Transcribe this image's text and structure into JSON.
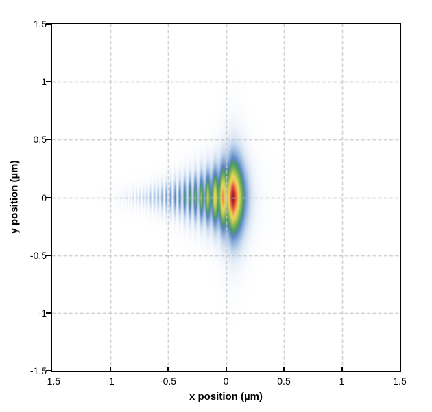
{
  "figure": {
    "background": "#ffffff",
    "frame_color": "#000000",
    "grid_color": "#c6c6c6",
    "grid_dash": [
      5,
      3.2
    ],
    "tick_color": "#000000",
    "text_color": "#000000"
  },
  "chart_data": {
    "type": "heatmap",
    "title": "",
    "xlabel": "x position (µm)",
    "ylabel": "y position (µm)",
    "xlim": [
      -1.5,
      1.5
    ],
    "ylim": [
      -1.5,
      1.5
    ],
    "x_tick_values": [
      -1.5,
      -1,
      -0.5,
      0,
      0.5,
      1,
      1.5
    ],
    "x_tick_labels": [
      "-1.5",
      "-1",
      "-0.5",
      "0",
      "0.5",
      "1",
      "1.5"
    ],
    "y_tick_values": [
      1.5,
      1,
      0.5,
      0,
      -0.5,
      -1,
      -1.5
    ],
    "y_tick_labels": [
      "1.5",
      "1",
      "0.5",
      "0",
      "-0.5",
      "-1",
      "-1.5"
    ],
    "grid_values": [
      -1,
      -0.5,
      0,
      0.5,
      1
    ],
    "grid_style": "dashed",
    "legend": "none",
    "description": "Optical focal intensity distribution: bright peak at (0.055, 0) um with a fan of chirped interference fringes extending left to x = -0.9 um, symmetric about y = 0; intensity 0 = white, max = dark red",
    "peak_position_um": [
      0.055,
      0
    ],
    "fringe_region_um": [
      -0.9,
      0.055
    ],
    "colormap": [
      [
        0.0,
        "#ffffff"
      ],
      [
        0.07,
        "#eff4fb"
      ],
      [
        0.16,
        "#cfdff2"
      ],
      [
        0.27,
        "#93b4dd"
      ],
      [
        0.37,
        "#5f88c6"
      ],
      [
        0.46,
        "#4b9a67"
      ],
      [
        0.56,
        "#7fb358"
      ],
      [
        0.66,
        "#c9cc55"
      ],
      [
        0.74,
        "#e9d75b"
      ],
      [
        0.82,
        "#f2a94e"
      ],
      [
        0.89,
        "#e4633a"
      ],
      [
        0.95,
        "#c93430"
      ],
      [
        1.0,
        "#8f1b21"
      ]
    ],
    "model": {
      "peak_x": 0.055,
      "peak_val": 0.97,
      "right_decay_w": 0.1,
      "right_decay_p": 1.6,
      "right_tail_a": 0.04,
      "right_tail_w": 0.3,
      "chirp_a": 35,
      "chirp_b": 45,
      "amp_decay": 0.55,
      "amp_cut": 0.98,
      "amp_cut_p": 6,
      "floor_a": 0.62,
      "floor_w": 0.4,
      "floor_min": 0.04,
      "h0": 0.3,
      "h_slope": 0.26,
      "h_min": 0.1,
      "v_exp": 1.8,
      "halo_a": 0.2,
      "halo_xw": 0.1,
      "halo_yw": 0.5,
      "halo_yp": 1.7
    }
  }
}
